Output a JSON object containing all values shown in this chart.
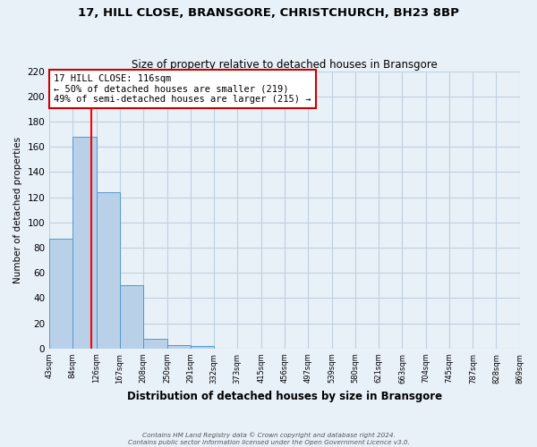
{
  "title": "17, HILL CLOSE, BRANSGORE, CHRISTCHURCH, BH23 8BP",
  "subtitle": "Size of property relative to detached houses in Bransgore",
  "xlabel": "Distribution of detached houses by size in Bransgore",
  "ylabel": "Number of detached properties",
  "footnote1": "Contains HM Land Registry data © Crown copyright and database right 2024.",
  "footnote2": "Contains public sector information licensed under the Open Government Licence v3.0.",
  "bar_edges": [
    43,
    84,
    126,
    167,
    208,
    250,
    291,
    332,
    373,
    415,
    456,
    497,
    539,
    580,
    621,
    663,
    704,
    745,
    787,
    828,
    869
  ],
  "bar_heights": [
    87,
    168,
    124,
    50,
    8,
    3,
    2,
    0,
    0,
    0,
    0,
    0,
    0,
    0,
    0,
    0,
    0,
    0,
    0,
    0
  ],
  "bar_color": "#b8d0e8",
  "bar_edge_color": "#5599cc",
  "red_line_x": 116,
  "ylim": [
    0,
    220
  ],
  "yticks": [
    0,
    20,
    40,
    60,
    80,
    100,
    120,
    140,
    160,
    180,
    200,
    220
  ],
  "xtick_labels": [
    "43sqm",
    "84sqm",
    "126sqm",
    "167sqm",
    "208sqm",
    "250sqm",
    "291sqm",
    "332sqm",
    "373sqm",
    "415sqm",
    "456sqm",
    "497sqm",
    "539sqm",
    "580sqm",
    "621sqm",
    "663sqm",
    "704sqm",
    "745sqm",
    "787sqm",
    "828sqm",
    "869sqm"
  ],
  "annotation_title": "17 HILL CLOSE: 116sqm",
  "annotation_line1": "← 50% of detached houses are smaller (219)",
  "annotation_line2": "49% of semi-detached houses are larger (215) →",
  "annotation_box_color": "#ffffff",
  "annotation_box_edge": "#cc0000",
  "grid_color": "#c0d0e0",
  "background_color": "#e8f0f8"
}
